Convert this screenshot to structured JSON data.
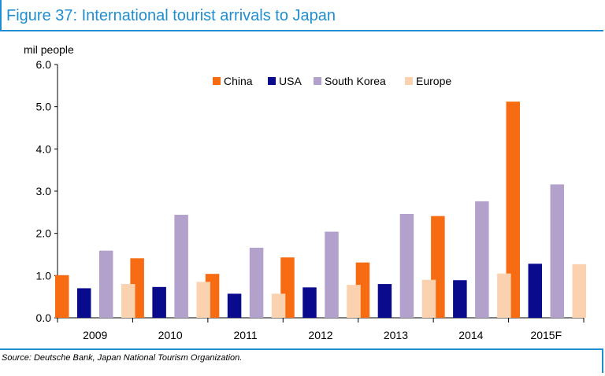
{
  "title": "Figure 37: International tourist arrivals to Japan",
  "source": "Source: Deutsche Bank, Japan National Tourism Organization.",
  "colors": {
    "China": "#f76b12",
    "USA": "#0a0a8c",
    "South Korea": "#b2a1cb",
    "Europe": "#fbd2b0",
    "accent": "#1f8ed0"
  },
  "chart_data": {
    "type": "bar",
    "title": "Figure 37: International tourist arrivals to Japan",
    "ylabel": "mil people",
    "xlabel": "",
    "ylim": [
      0,
      6
    ],
    "yticks": [
      "0.0",
      "1.0",
      "2.0",
      "3.0",
      "4.0",
      "5.0",
      "6.0"
    ],
    "categories": [
      "2009",
      "2010",
      "2011",
      "2012",
      "2013",
      "2014",
      "2015F"
    ],
    "legend_position": "top-center",
    "series": [
      {
        "name": "China",
        "values": [
          1.01,
          1.41,
          1.04,
          1.43,
          1.31,
          2.41,
          5.12
        ]
      },
      {
        "name": "USA",
        "values": [
          0.7,
          0.73,
          0.57,
          0.72,
          0.8,
          0.89,
          1.28
        ]
      },
      {
        "name": "South Korea",
        "values": [
          1.59,
          2.44,
          1.66,
          2.04,
          2.46,
          2.76,
          3.16
        ]
      },
      {
        "name": "Europe",
        "values": [
          0.8,
          0.85,
          0.57,
          0.78,
          0.9,
          1.05,
          1.27
        ]
      }
    ]
  }
}
